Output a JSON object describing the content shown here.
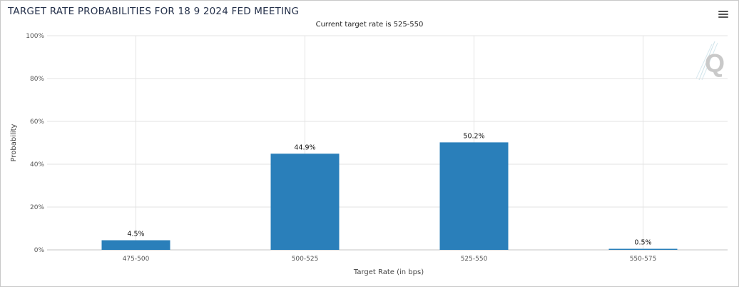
{
  "title": "TARGET RATE PROBABILITIES FOR 18 9 2024 FED MEETING",
  "subtitle": "Current target rate is 525-550",
  "menu_icon": "hamburger-menu-icon",
  "logo_icon": "quikstrike-q-logo-icon",
  "colors": {
    "bar": "#2a7fba",
    "grid": "#e3e3e3",
    "title": "#24304a"
  },
  "chart_data": {
    "type": "bar",
    "title": "TARGET RATE PROBABILITIES FOR 18 9 2024 FED MEETING",
    "subtitle": "Current target rate is 525-550",
    "categories": [
      "475-500",
      "500-525",
      "525-550",
      "550-575"
    ],
    "values": [
      4.5,
      44.9,
      50.2,
      0.5
    ],
    "data_labels": [
      "4.5%",
      "44.9%",
      "50.2%",
      "0.5%"
    ],
    "xlabel": "Target Rate (in bps)",
    "ylabel": "Probability",
    "ylim": [
      0,
      100
    ],
    "yticks": [
      0,
      20,
      40,
      60,
      80,
      100
    ],
    "ytick_labels": [
      "0%",
      "20%",
      "40%",
      "60%",
      "80%",
      "100%"
    ],
    "grid": true,
    "legend": "none"
  }
}
